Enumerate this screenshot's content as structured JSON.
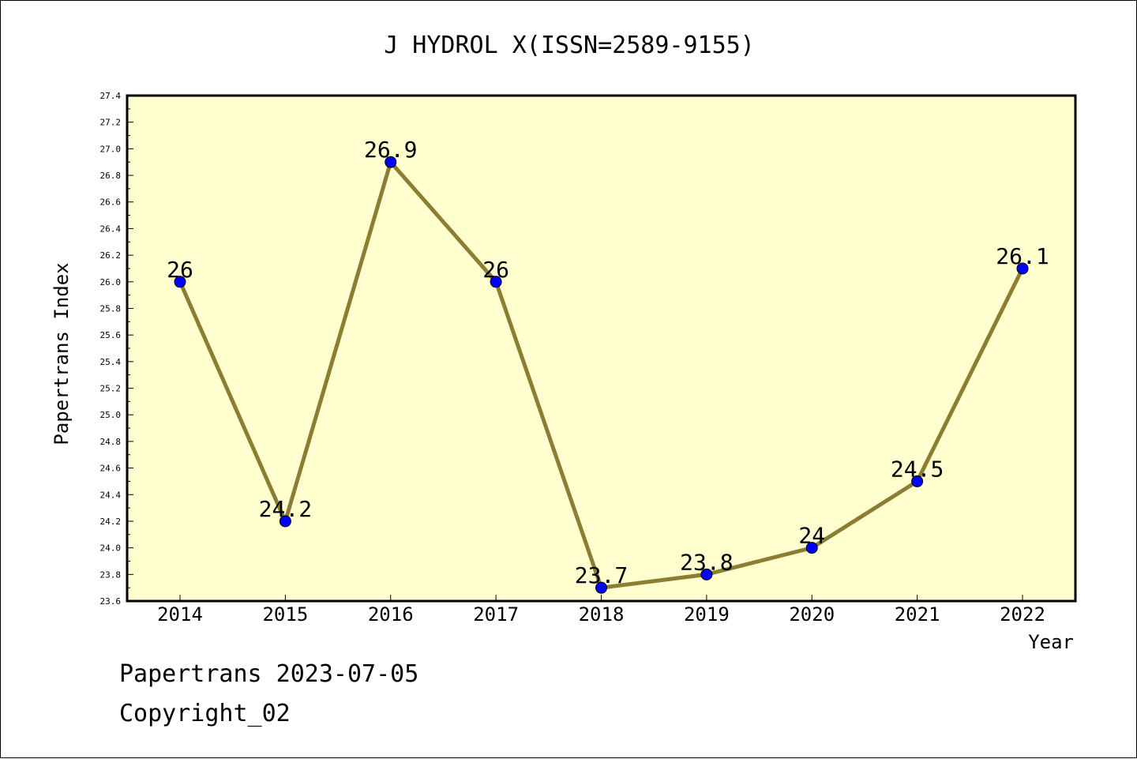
{
  "chart_data": {
    "type": "line",
    "title": "J HYDROL X(ISSN=2589-9155)",
    "xlabel": "Year",
    "ylabel": "Papertrans Index",
    "categories": [
      "2014",
      "2015",
      "2016",
      "2017",
      "2018",
      "2019",
      "2020",
      "2021",
      "2022"
    ],
    "series": [
      {
        "values": [
          26,
          24.2,
          26.9,
          26,
          23.7,
          23.8,
          24,
          24.5,
          26.1
        ],
        "data_labels": [
          "26",
          "24.2",
          "26.9",
          "26",
          "23.7",
          "23.8",
          "24",
          "24.5",
          "26.1"
        ]
      }
    ],
    "ylim": [
      23.6,
      27.4
    ],
    "yticks": [
      "23.6",
      "23.8",
      "24.0",
      "24.2",
      "24.4",
      "24.6",
      "24.8",
      "25.0",
      "25.2",
      "25.4",
      "25.6",
      "25.8",
      "26.0",
      "26.2",
      "26.4",
      "26.6",
      "26.8",
      "27.0",
      "27.2",
      "27.4"
    ],
    "grid": false,
    "legend": "none",
    "colors": {
      "plot_background": "#ffffd0",
      "line": "#8b7d32",
      "marker": "#0000ff",
      "axis": "#000000"
    }
  },
  "footer": {
    "line1": "Papertrans 2023-07-05",
    "line2": "Copyright_02"
  }
}
